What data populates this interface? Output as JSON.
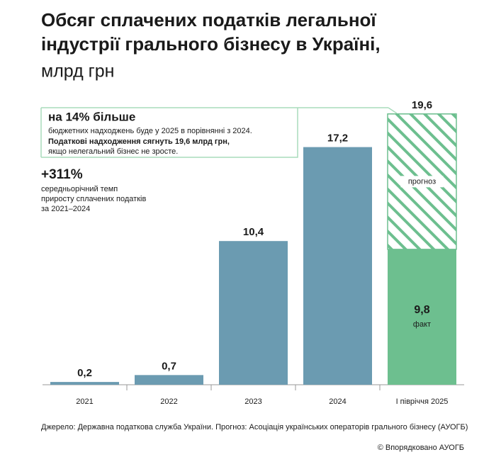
{
  "chart_data": {
    "type": "bar",
    "title": [
      "Обсяг сплачених податків легальної",
      "індустрії грального бізнесу в Україні,"
    ],
    "subtitle": "млрд грн",
    "categories": [
      "2021",
      "2022",
      "2023",
      "2024",
      "І півріччя 2025"
    ],
    "series": [
      {
        "name": "факт",
        "color": "#6b9bb1",
        "values": [
          0.2,
          0.7,
          10.4,
          17.2,
          9.8
        ],
        "value_labels": [
          "0,2",
          "0,7",
          "10,4",
          "17,2",
          "9,8"
        ]
      },
      {
        "name": "прогноз",
        "color": "#6dbf8f",
        "values": [
          null,
          null,
          null,
          null,
          9.8
        ],
        "pattern": "hatch"
      }
    ],
    "highlight_color": "#6dbf8f",
    "totals": [
      null,
      null,
      null,
      null,
      19.6
    ],
    "total_labels": [
      null,
      null,
      null,
      null,
      "19,6"
    ],
    "ylim": [
      0,
      20
    ],
    "callout": {
      "headline": "на 14% більше",
      "lines": [
        "бюджетних надходжень буде у 2025 в порівнянні з 2024."
      ],
      "bold_line": "Податкові надходження сягнуть 19,6 млрд грн,",
      "last_line": "якщо нелегальний бізнес не зросте."
    },
    "side_note": {
      "headline": "+311%",
      "lines": [
        "середньорічний темп",
        "приросту сплачених податків",
        "за 2021–2024"
      ]
    },
    "source": "Джерело: Державна податкова служба України. Прогноз: Асоціація українських операторів грального бізнесу (АУОГБ)",
    "credit": "© Впорядковано АУОГБ"
  }
}
